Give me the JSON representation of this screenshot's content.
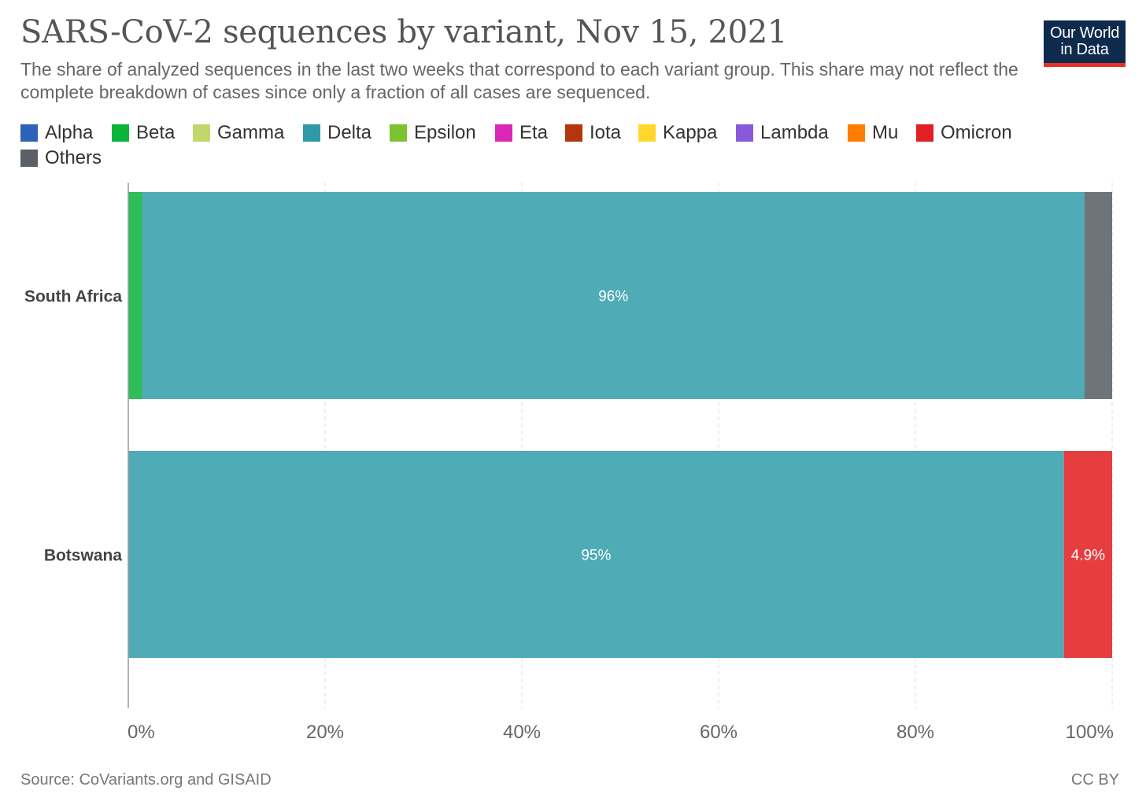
{
  "title": "SARS-CoV-2 sequences by variant, Nov 15, 2021",
  "subtitle": "The share of analyzed sequences in the last two weeks that correspond to each variant group. This share may not reflect the complete breakdown of cases since only a fraction of all cases are sequenced.",
  "logo": {
    "line1": "Our World",
    "line2": "in Data"
  },
  "legend": [
    {
      "name": "Alpha",
      "color": "#2e62b8"
    },
    {
      "name": "Beta",
      "color": "#0ab43b"
    },
    {
      "name": "Gamma",
      "color": "#c3d66b"
    },
    {
      "name": "Delta",
      "color": "#2f9aa6"
    },
    {
      "name": "Epsilon",
      "color": "#7cc232"
    },
    {
      "name": "Eta",
      "color": "#d929b6"
    },
    {
      "name": "Iota",
      "color": "#b3360e"
    },
    {
      "name": "Kappa",
      "color": "#ffd72b"
    },
    {
      "name": "Lambda",
      "color": "#8a58db"
    },
    {
      "name": "Mu",
      "color": "#ff7d00"
    },
    {
      "name": "Omicron",
      "color": "#e11f26"
    },
    {
      "name": "Others",
      "color": "#5b5f66"
    }
  ],
  "footer": {
    "source": "Source: CoVariants.org and GISAID",
    "license": "CC BY"
  },
  "chart_data": {
    "type": "bar",
    "orientation": "horizontal",
    "stacked": true,
    "categories": [
      "South Africa",
      "Botswana"
    ],
    "series": [
      {
        "name": "Beta",
        "color": "#2fbd59",
        "values": [
          1.4,
          0
        ]
      },
      {
        "name": "Delta",
        "color": "#4fabb5",
        "values": [
          95.8,
          95.1
        ]
      },
      {
        "name": "Omicron",
        "color": "#e63e40",
        "values": [
          0,
          4.9
        ]
      },
      {
        "name": "Others",
        "color": "#6f737a",
        "values": [
          2.8,
          0
        ]
      }
    ],
    "data_labels": [
      {
        "category": "South Africa",
        "series": "Delta",
        "text": "96%"
      },
      {
        "category": "Botswana",
        "series": "Delta",
        "text": "95%"
      },
      {
        "category": "Botswana",
        "series": "Omicron",
        "text": "4.9%"
      }
    ],
    "x_ticks": [
      "0%",
      "20%",
      "40%",
      "60%",
      "80%",
      "100%"
    ],
    "xlim": [
      0,
      100
    ],
    "grid": true,
    "legend_position": "top",
    "xlabel": "",
    "ylabel": ""
  }
}
